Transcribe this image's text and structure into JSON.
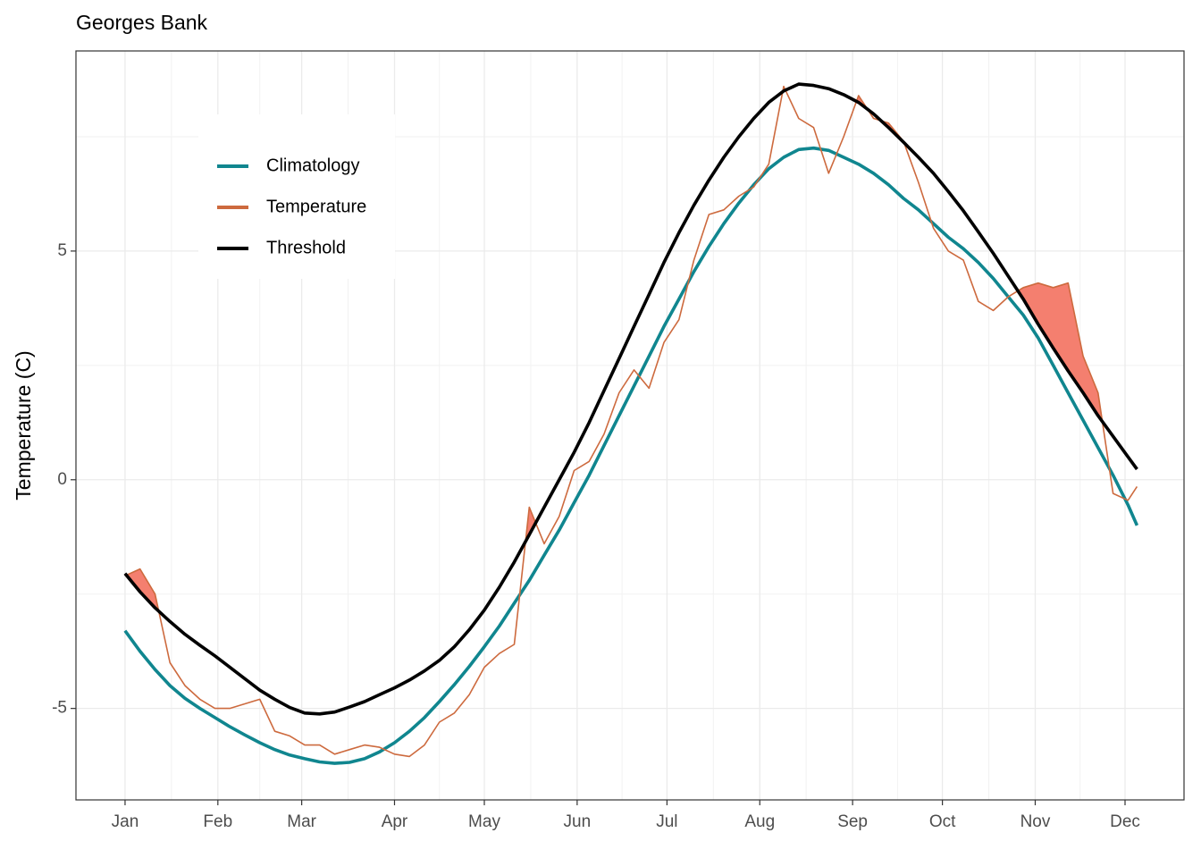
{
  "chart_data": {
    "type": "line",
    "title": "Georges Bank",
    "y_label": "Temperature (C)",
    "x": [
      0,
      5,
      10,
      15,
      20,
      25,
      30,
      35,
      40,
      45,
      50,
      55,
      60,
      65,
      70,
      75,
      80,
      85,
      90,
      95,
      100,
      105,
      110,
      115,
      120,
      125,
      130,
      135,
      140,
      145,
      150,
      155,
      160,
      165,
      170,
      175,
      180,
      185,
      190,
      195,
      200,
      205,
      210,
      215,
      220,
      225,
      230,
      235,
      240,
      245,
      250,
      255,
      260,
      265,
      270,
      275,
      280,
      285,
      290,
      295,
      300,
      305,
      310,
      315,
      320,
      325,
      330,
      335,
      338
    ],
    "xlim": [
      -16.4,
      353.7
    ],
    "xticks": [
      {
        "value": 0,
        "label": "Jan"
      },
      {
        "value": 31,
        "label": "Feb"
      },
      {
        "value": 59,
        "label": "Mar"
      },
      {
        "value": 90,
        "label": "Apr"
      },
      {
        "value": 120,
        "label": "May"
      },
      {
        "value": 151,
        "label": "Jun"
      },
      {
        "value": 181,
        "label": "Jul"
      },
      {
        "value": 212,
        "label": "Aug"
      },
      {
        "value": 243,
        "label": "Sep"
      },
      {
        "value": 273,
        "label": "Oct"
      },
      {
        "value": 304,
        "label": "Nov"
      },
      {
        "value": 334,
        "label": "Dec"
      }
    ],
    "ylim": [
      -7,
      9.375
    ],
    "yticks": [
      -5,
      0,
      5
    ],
    "grid": true,
    "legend": "top-left",
    "exceedance_color": "#f47f6f",
    "series": [
      {
        "name": "Climatology",
        "color": "#10868f",
        "values": [
          -3.3,
          -3.75,
          -4.15,
          -4.5,
          -4.78,
          -5.0,
          -5.2,
          -5.4,
          -5.58,
          -5.75,
          -5.9,
          -6.02,
          -6.1,
          -6.17,
          -6.2,
          -6.18,
          -6.1,
          -5.95,
          -5.75,
          -5.5,
          -5.2,
          -4.85,
          -4.48,
          -4.08,
          -3.65,
          -3.2,
          -2.7,
          -2.2,
          -1.65,
          -1.1,
          -0.5,
          0.1,
          0.75,
          1.4,
          2.05,
          2.7,
          3.35,
          3.95,
          4.55,
          5.1,
          5.6,
          6.05,
          6.45,
          6.8,
          7.05,
          7.22,
          7.25,
          7.2,
          7.05,
          6.9,
          6.7,
          6.45,
          6.15,
          5.9,
          5.6,
          5.3,
          5.05,
          4.75,
          4.4,
          4.0,
          3.6,
          3.1,
          2.5,
          1.9,
          1.3,
          0.7,
          0.1,
          -0.55,
          -1.0
        ]
      },
      {
        "name": "Temperature",
        "color": "#cd6a3e",
        "values": [
          -2.1,
          -1.95,
          -2.5,
          -4.0,
          -4.5,
          -4.8,
          -5.0,
          -5.0,
          -4.9,
          -4.8,
          -5.5,
          -5.6,
          -5.8,
          -5.8,
          -6.0,
          -5.9,
          -5.8,
          -5.85,
          -6.0,
          -6.05,
          -5.8,
          -5.3,
          -5.1,
          -4.7,
          -4.1,
          -3.8,
          -3.6,
          -0.6,
          -1.4,
          -0.8,
          0.2,
          0.4,
          1.0,
          1.9,
          2.4,
          2.0,
          3.0,
          3.5,
          4.8,
          5.8,
          5.9,
          6.2,
          6.4,
          6.9,
          8.6,
          7.9,
          7.7,
          6.7,
          7.5,
          8.4,
          7.9,
          7.8,
          7.4,
          6.5,
          5.5,
          5.0,
          4.8,
          3.9,
          3.7,
          4.0,
          4.2,
          4.3,
          4.2,
          4.3,
          2.7,
          1.9,
          -0.3,
          -0.45,
          -0.15
        ]
      },
      {
        "name": "Threshold",
        "color": "#000000",
        "values": [
          -2.05,
          -2.45,
          -2.8,
          -3.1,
          -3.38,
          -3.62,
          -3.85,
          -4.1,
          -4.35,
          -4.6,
          -4.8,
          -4.98,
          -5.1,
          -5.12,
          -5.08,
          -4.97,
          -4.85,
          -4.7,
          -4.55,
          -4.38,
          -4.18,
          -3.95,
          -3.65,
          -3.28,
          -2.85,
          -2.35,
          -1.8,
          -1.2,
          -0.6,
          0.0,
          0.6,
          1.25,
          1.95,
          2.65,
          3.35,
          4.05,
          4.75,
          5.4,
          6.0,
          6.55,
          7.05,
          7.5,
          7.9,
          8.25,
          8.5,
          8.65,
          8.62,
          8.55,
          8.42,
          8.25,
          8.0,
          7.7,
          7.38,
          7.05,
          6.7,
          6.3,
          5.88,
          5.42,
          4.95,
          4.45,
          3.95,
          3.4,
          2.88,
          2.38,
          1.9,
          1.4,
          0.95,
          0.5,
          0.23
        ]
      }
    ]
  }
}
